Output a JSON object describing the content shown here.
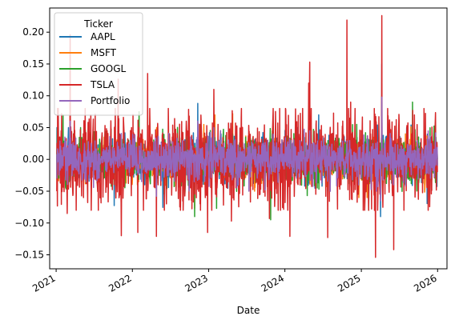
{
  "chart_data": {
    "type": "line",
    "xlabel": "Date",
    "ylabel": "",
    "x_range": [
      "2020-12-01",
      "2026-02-15"
    ],
    "ylim": [
      -0.172,
      0.238
    ],
    "x_ticks": [
      {
        "date": "2021-01-01",
        "label": "2021"
      },
      {
        "date": "2022-01-01",
        "label": "2022"
      },
      {
        "date": "2023-01-01",
        "label": "2023"
      },
      {
        "date": "2024-01-01",
        "label": "2024"
      },
      {
        "date": "2025-01-01",
        "label": "2025"
      },
      {
        "date": "2026-01-01",
        "label": "2026"
      }
    ],
    "y_ticks": [
      {
        "value": 0.2,
        "label": "0.20"
      },
      {
        "value": 0.15,
        "label": "0.15"
      },
      {
        "value": 0.1,
        "label": "0.10"
      },
      {
        "value": 0.05,
        "label": "0.05"
      },
      {
        "value": 0.0,
        "label": "0.00"
      },
      {
        "value": -0.05,
        "label": "−0.05"
      },
      {
        "value": -0.1,
        "label": "−0.10"
      },
      {
        "value": -0.15,
        "label": "−0.15"
      }
    ],
    "legend": {
      "title": "Ticker",
      "position": "top-left"
    },
    "grid": false,
    "series": [
      {
        "name": "AAPL",
        "color": "#1f77b4",
        "points": [
          [
            "2021-01-04",
            -0.02
          ],
          [
            "2021-03-01",
            0.05
          ],
          [
            "2021-06-01",
            -0.03
          ],
          [
            "2021-11-01",
            0.04
          ],
          [
            "2022-03-01",
            -0.04
          ],
          [
            "2022-05-01",
            -0.05
          ],
          [
            "2022-10-01",
            0.07
          ],
          [
            "2022-11-10",
            0.088
          ],
          [
            "2023-03-01",
            0.04
          ],
          [
            "2023-11-01",
            0.04
          ],
          [
            "2024-05-02",
            0.06
          ],
          [
            "2024-06-11",
            0.07
          ],
          [
            "2024-08-05",
            -0.05
          ],
          [
            "2025-04-03",
            -0.09
          ],
          [
            "2025-04-09",
            0.15
          ],
          [
            "2025-08-06",
            0.05
          ],
          [
            "2025-12-31",
            -0.01
          ]
        ]
      },
      {
        "name": "MSFT",
        "color": "#ff7f0e",
        "points": [
          [
            "2021-01-04",
            -0.03
          ],
          [
            "2021-06-01",
            0.03
          ],
          [
            "2022-01-25",
            -0.04
          ],
          [
            "2022-04-27",
            0.05
          ],
          [
            "2022-10-26",
            -0.077
          ],
          [
            "2023-01-31",
            0.07
          ],
          [
            "2023-04-26",
            0.072
          ],
          [
            "2024-01-31",
            -0.03
          ],
          [
            "2024-08-05",
            -0.03
          ],
          [
            "2024-12-20",
            -0.06
          ],
          [
            "2025-01-29",
            -0.06
          ],
          [
            "2025-04-09",
            0.1
          ],
          [
            "2025-07-31",
            0.04
          ],
          [
            "2025-12-31",
            -0.01
          ]
        ]
      },
      {
        "name": "GOOGL",
        "color": "#2ca02c",
        "points": [
          [
            "2021-01-04",
            -0.03
          ],
          [
            "2021-02-03",
            0.07
          ],
          [
            "2021-04-28",
            0.05
          ],
          [
            "2021-06-15",
            0.03
          ],
          [
            "2022-02-02",
            0.075
          ],
          [
            "2022-04-27",
            -0.037
          ],
          [
            "2022-10-26",
            -0.09
          ],
          [
            "2023-02-08",
            -0.077
          ],
          [
            "2023-04-26",
            0.04
          ],
          [
            "2023-10-25",
            -0.095
          ],
          [
            "2024-04-26",
            0.1
          ],
          [
            "2024-07-24",
            -0.05
          ],
          [
            "2024-12-10",
            0.055
          ],
          [
            "2025-02-05",
            -0.08
          ],
          [
            "2025-04-09",
            0.09
          ],
          [
            "2025-09-03",
            0.09
          ],
          [
            "2025-12-31",
            0.0
          ]
        ]
      },
      {
        "name": "TSLA",
        "color": "#d62728",
        "points": [
          [
            "2021-01-04",
            -0.05
          ],
          [
            "2021-01-08",
            0.08
          ],
          [
            "2021-02-23",
            -0.085
          ],
          [
            "2021-03-09",
            0.196
          ],
          [
            "2021-05-12",
            -0.06
          ],
          [
            "2021-10-25",
            0.126
          ],
          [
            "2021-11-09",
            -0.12
          ],
          [
            "2021-12-28",
            0.05
          ],
          [
            "2022-01-27",
            -0.115
          ],
          [
            "2022-03-15",
            0.135
          ],
          [
            "2022-04-26",
            -0.121
          ],
          [
            "2022-06-13",
            -0.07
          ],
          [
            "2022-09-16",
            0.06
          ],
          [
            "2022-10-20",
            -0.067
          ],
          [
            "2022-12-27",
            -0.115
          ],
          [
            "2023-01-26",
            0.11
          ],
          [
            "2023-04-20",
            -0.097
          ],
          [
            "2023-10-19",
            -0.093
          ],
          [
            "2024-01-25",
            -0.121
          ],
          [
            "2024-04-24",
            0.12
          ],
          [
            "2024-04-29",
            0.153
          ],
          [
            "2024-06-12",
            0.03
          ],
          [
            "2024-07-24",
            -0.123
          ],
          [
            "2024-10-24",
            0.219
          ],
          [
            "2024-11-11",
            0.09
          ],
          [
            "2025-01-10",
            -0.08
          ],
          [
            "2025-03-10",
            -0.154
          ],
          [
            "2025-04-03",
            -0.05
          ],
          [
            "2025-04-09",
            0.226
          ],
          [
            "2025-06-05",
            -0.142
          ],
          [
            "2025-09-12",
            0.07
          ],
          [
            "2025-12-31",
            -0.02
          ]
        ]
      },
      {
        "name": "Portfolio",
        "color": "#9467bd",
        "points": [
          [
            "2021-01-04",
            -0.03
          ],
          [
            "2021-03-09",
            0.06
          ],
          [
            "2022-04-26",
            -0.058
          ],
          [
            "2022-11-10",
            0.06
          ],
          [
            "2023-01-26",
            0.05
          ],
          [
            "2024-04-29",
            0.045
          ],
          [
            "2024-08-05",
            -0.05
          ],
          [
            "2025-04-03",
            -0.065
          ],
          [
            "2025-04-09",
            0.098
          ],
          [
            "2025-12-31",
            -0.01
          ]
        ]
      }
    ]
  }
}
